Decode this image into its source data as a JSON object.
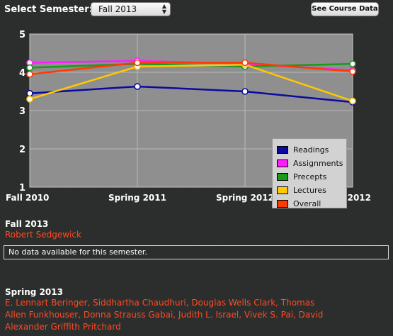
{
  "toolbar": {
    "semester_label": "Select Semester:",
    "semester_value": "Fall 2013",
    "course_data_button": "See Course Data"
  },
  "chart_data": {
    "type": "line",
    "categories": [
      "Fall 2010",
      "Spring 2011",
      "Spring 2012",
      "Fall 2012"
    ],
    "ylim": [
      1,
      5
    ],
    "yticks": [
      "1",
      "2",
      "3",
      "4",
      "5"
    ],
    "grid": true,
    "legend_position": "bottom-right",
    "series": [
      {
        "name": "Readings",
        "color": "#0a0aa0",
        "values": [
          3.45,
          3.63,
          3.5,
          3.22
        ]
      },
      {
        "name": "Assignments",
        "color": "#ff1cff",
        "values": [
          4.25,
          4.3,
          4.22,
          4.05
        ]
      },
      {
        "name": "Precepts",
        "color": "#1a9a1a",
        "values": [
          4.12,
          4.22,
          4.15,
          4.22
        ]
      },
      {
        "name": "Lectures",
        "color": "#ffc800",
        "values": [
          3.3,
          4.15,
          4.2,
          3.25
        ]
      },
      {
        "name": "Overall",
        "color": "#ff3a00",
        "values": [
          3.95,
          4.25,
          4.25,
          4.02
        ]
      }
    ]
  },
  "fall2013": {
    "title": "Fall 2013",
    "instructors": "Robert Sedgewick",
    "notice": "No data available for this semester."
  },
  "spring2013": {
    "title": "Spring 2013",
    "instructors_line1": "E. Lennart Beringer, Siddhartha Chaudhuri, Douglas Wells Clark, Thomas",
    "instructors_line2": "Allen Funkhouser, Donna Strauss Gabai, Judith L. Israel, Vivek S. Pai, David",
    "instructors_line3": "Alexander Griffith Pritchard"
  }
}
